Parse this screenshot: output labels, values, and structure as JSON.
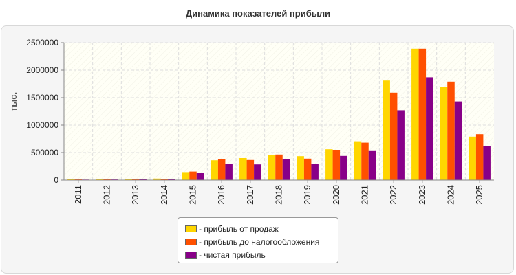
{
  "chart_data": {
    "type": "bar",
    "title": "Динамика показателей прибыли",
    "ylabel": "тыс.",
    "xlabel": "",
    "ylim": [
      0,
      2500000
    ],
    "yticks": [
      0,
      500000,
      1000000,
      1500000,
      2000000,
      2500000
    ],
    "grid": true,
    "legend_position": "bottom",
    "categories": [
      "2011",
      "2012",
      "2013",
      "2014",
      "2015",
      "2016",
      "2017",
      "2018",
      "2019",
      "2020",
      "2021",
      "2022",
      "2023",
      "2024",
      "2025"
    ],
    "series": [
      {
        "name": "- прибыль от продаж",
        "color": "#ffd600",
        "values": [
          15000,
          18000,
          22000,
          28000,
          145000,
          360000,
          400000,
          460000,
          435000,
          560000,
          705000,
          1810000,
          2390000,
          1700000,
          790000
        ]
      },
      {
        "name": "- прибыль до налогообложения",
        "color": "#ff5000",
        "values": [
          12000,
          15000,
          20000,
          25000,
          155000,
          375000,
          365000,
          465000,
          390000,
          550000,
          680000,
          1590000,
          2390000,
          1790000,
          835000
        ]
      },
      {
        "name": "- чистая прибыль",
        "color": "#880088",
        "values": [
          9000,
          11000,
          15000,
          20000,
          125000,
          300000,
          285000,
          375000,
          300000,
          440000,
          540000,
          1270000,
          1870000,
          1430000,
          620000
        ]
      }
    ]
  }
}
